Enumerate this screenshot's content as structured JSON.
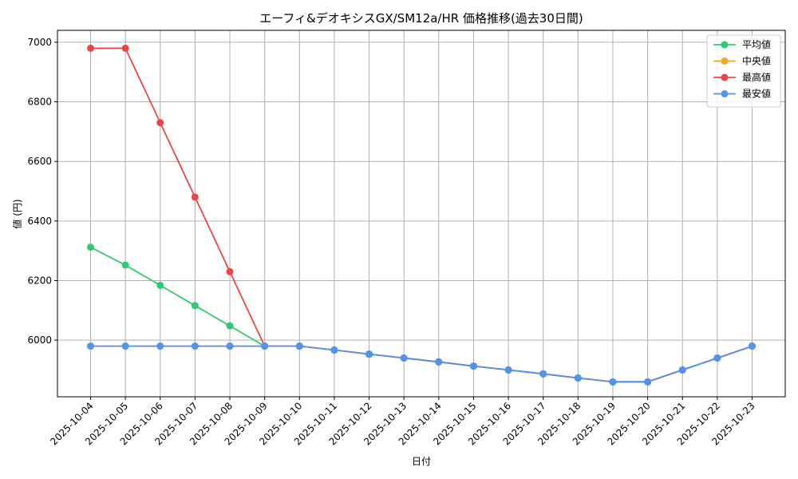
{
  "chart_data": {
    "type": "line",
    "title": "エーフィ&デオキシスGX/SM12a/HR 価格推移(過去30日間)",
    "xlabel": "日付",
    "ylabel": "値 (円)",
    "x": [
      "2025-10-04",
      "2025-10-05",
      "2025-10-06",
      "2025-10-07",
      "2025-10-08",
      "2025-10-09",
      "2025-10-10",
      "2025-10-11",
      "2025-10-12",
      "2025-10-13",
      "2025-10-14",
      "2025-10-15",
      "2025-10-16",
      "2025-10-17",
      "2025-10-18",
      "2025-10-19",
      "2025-10-20",
      "2025-10-21",
      "2025-10-22",
      "2025-10-23"
    ],
    "ylim": [
      5810,
      7040
    ],
    "yticks": [
      6000,
      6200,
      6400,
      6600,
      6800,
      7000
    ],
    "grid": true,
    "legend_position": "top-right",
    "series": [
      {
        "name": "平均値",
        "color": "#2ecc71",
        "values": [
          6312,
          6252,
          6184,
          6116,
          6048,
          5980,
          5980,
          5967,
          5953,
          5940,
          5927,
          5913,
          5900,
          5887,
          5873,
          5860,
          5860,
          5900,
          5940,
          5980
        ]
      },
      {
        "name": "中央値",
        "color": "#f5a623",
        "values": [
          5980,
          5980,
          5980,
          5980,
          5980,
          5980,
          5980,
          5967,
          5953,
          5940,
          5927,
          5913,
          5900,
          5887,
          5873,
          5860,
          5860,
          5900,
          5940,
          5980
        ]
      },
      {
        "name": "最高値",
        "color": "#ef4444",
        "values": [
          6980,
          6980,
          6730,
          6480,
          6230,
          5980,
          5980,
          5967,
          5953,
          5940,
          5927,
          5913,
          5900,
          5887,
          5873,
          5860,
          5860,
          5900,
          5940,
          5980
        ]
      },
      {
        "name": "最安値",
        "color": "#4f94ef",
        "values": [
          5980,
          5980,
          5980,
          5980,
          5980,
          5980,
          5980,
          5967,
          5953,
          5940,
          5927,
          5913,
          5900,
          5887,
          5873,
          5860,
          5860,
          5900,
          5940,
          5980
        ]
      }
    ]
  }
}
